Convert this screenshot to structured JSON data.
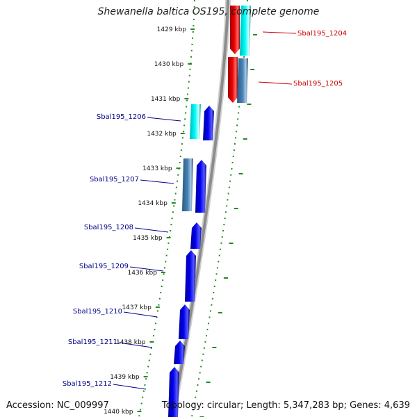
{
  "title": "Shewanella baltica OS195, complete genome",
  "accession": "Accession: NC_009997",
  "summary": "Topology: circular; Length: 5,347,283 bp; Genes: 4,639",
  "colors": {
    "forward_cds": "#0000ee",
    "reverse_cds": "#ee0000",
    "forward_label": "#00008b",
    "reverse_label": "#cc0000",
    "ruler_ticks": "#228b22",
    "backbone": "#8c8c8c",
    "cyan_feature": "#00ffff",
    "steel_feature": "#4682b4"
  },
  "ruler_labels": [
    "1429 kbp",
    "1430 kbp",
    "1431 kbp",
    "1432 kbp",
    "1433 kbp",
    "1434 kbp",
    "1435 kbp",
    "1436 kbp",
    "1437 kbp",
    "1438 kbp",
    "1439 kbp",
    "1440 kbp"
  ],
  "gene_labels": [
    {
      "text": "Sbal195_1204",
      "strand": "reverse"
    },
    {
      "text": "Sbal195_1205",
      "strand": "reverse"
    },
    {
      "text": "Sbal195_1206",
      "strand": "forward"
    },
    {
      "text": "Sbal195_1207",
      "strand": "forward"
    },
    {
      "text": "Sbal195_1208",
      "strand": "forward"
    },
    {
      "text": "Sbal195_1209",
      "strand": "forward"
    },
    {
      "text": "Sbal195_1210",
      "strand": "forward"
    },
    {
      "text": "Sbal195_1211",
      "strand": "forward"
    },
    {
      "text": "Sbal195_1212",
      "strand": "forward"
    }
  ]
}
